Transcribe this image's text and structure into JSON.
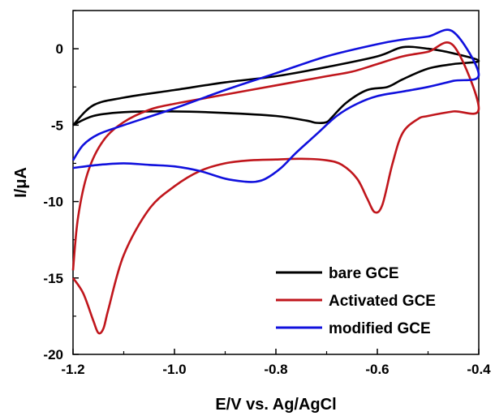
{
  "chart_data": {
    "type": "line",
    "title": "",
    "xlabel": "E/V vs. Ag/AgCl",
    "ylabel": "I/μA",
    "xlim": [
      -1.2,
      -0.4
    ],
    "ylim": [
      -20,
      2.5
    ],
    "xticks": [
      -1.2,
      -1.0,
      -0.8,
      -0.6,
      -0.4
    ],
    "xtick_labels": [
      "-1.2",
      "-1.0",
      "-0.8",
      "-0.6",
      "-0.4"
    ],
    "yticks": [
      0,
      -5,
      -10,
      -15,
      -20
    ],
    "ytick_labels": [
      "0",
      "-5",
      "-10",
      "-15",
      "-20"
    ],
    "grid": false,
    "legend_position": "bottom-right",
    "series": [
      {
        "name": "bare GCE",
        "color": "#000000",
        "x": [
          -1.2,
          -1.16,
          -1.1,
          -1.0,
          -0.9,
          -0.8,
          -0.74,
          -0.72,
          -0.7,
          -0.69,
          -0.66,
          -0.62,
          -0.58,
          -0.55,
          -0.5,
          -0.45,
          -0.4,
          -0.45,
          -0.5,
          -0.55,
          -0.6,
          -0.7,
          -0.8,
          -0.9,
          -1.0,
          -1.1,
          -1.16,
          -1.2
        ],
        "y": [
          -5.0,
          -4.4,
          -4.15,
          -4.1,
          -4.2,
          -4.4,
          -4.7,
          -4.85,
          -4.8,
          -4.5,
          -3.5,
          -2.7,
          -2.5,
          -2.0,
          -1.3,
          -1.0,
          -0.8,
          -0.3,
          0.0,
          0.1,
          -0.5,
          -1.2,
          -1.8,
          -2.2,
          -2.7,
          -3.2,
          -3.7,
          -5.0
        ]
      },
      {
        "name": "Activated GCE",
        "color": "#c0161c",
        "x": [
          -1.2,
          -1.18,
          -1.16,
          -1.15,
          -1.14,
          -1.13,
          -1.1,
          -1.05,
          -1.0,
          -0.95,
          -0.9,
          -0.85,
          -0.8,
          -0.75,
          -0.7,
          -0.67,
          -0.64,
          -0.62,
          -0.605,
          -0.59,
          -0.57,
          -0.55,
          -0.52,
          -0.5,
          -0.45,
          -0.4,
          -0.45,
          -0.5,
          -0.55,
          -0.6,
          -0.65,
          -0.7,
          -0.8,
          -0.9,
          -1.0,
          -1.05,
          -1.1,
          -1.14,
          -1.17,
          -1.19,
          -1.2
        ],
        "y": [
          -15.0,
          -16.0,
          -17.8,
          -18.6,
          -18.3,
          -17.0,
          -13.5,
          -10.5,
          -9.0,
          -8.0,
          -7.5,
          -7.3,
          -7.25,
          -7.2,
          -7.3,
          -7.6,
          -8.5,
          -9.8,
          -10.7,
          -10.2,
          -7.5,
          -5.5,
          -4.6,
          -4.4,
          -4.1,
          -3.9,
          0.2,
          -0.2,
          -0.5,
          -1.0,
          -1.5,
          -1.8,
          -2.4,
          -3.0,
          -3.6,
          -4.0,
          -4.8,
          -6.0,
          -8.0,
          -11.0,
          -14.5
        ]
      },
      {
        "name": "modified GCE",
        "color": "#1010dd",
        "x": [
          -1.2,
          -1.15,
          -1.1,
          -1.05,
          -1.0,
          -0.95,
          -0.9,
          -0.86,
          -0.84,
          -0.82,
          -0.79,
          -0.76,
          -0.72,
          -0.68,
          -0.64,
          -0.6,
          -0.55,
          -0.5,
          -0.45,
          -0.4,
          -0.45,
          -0.5,
          -0.55,
          -0.6,
          -0.7,
          -0.8,
          -0.9,
          -1.0,
          -1.1,
          -1.15,
          -1.18,
          -1.2
        ],
        "y": [
          -7.8,
          -7.6,
          -7.5,
          -7.6,
          -7.7,
          -8.0,
          -8.5,
          -8.7,
          -8.7,
          -8.5,
          -7.8,
          -6.8,
          -5.6,
          -4.4,
          -3.6,
          -3.1,
          -2.8,
          -2.5,
          -2.1,
          -1.7,
          1.1,
          0.8,
          0.6,
          0.3,
          -0.5,
          -1.6,
          -2.7,
          -3.9,
          -5.0,
          -5.6,
          -6.3,
          -7.3
        ]
      }
    ]
  }
}
